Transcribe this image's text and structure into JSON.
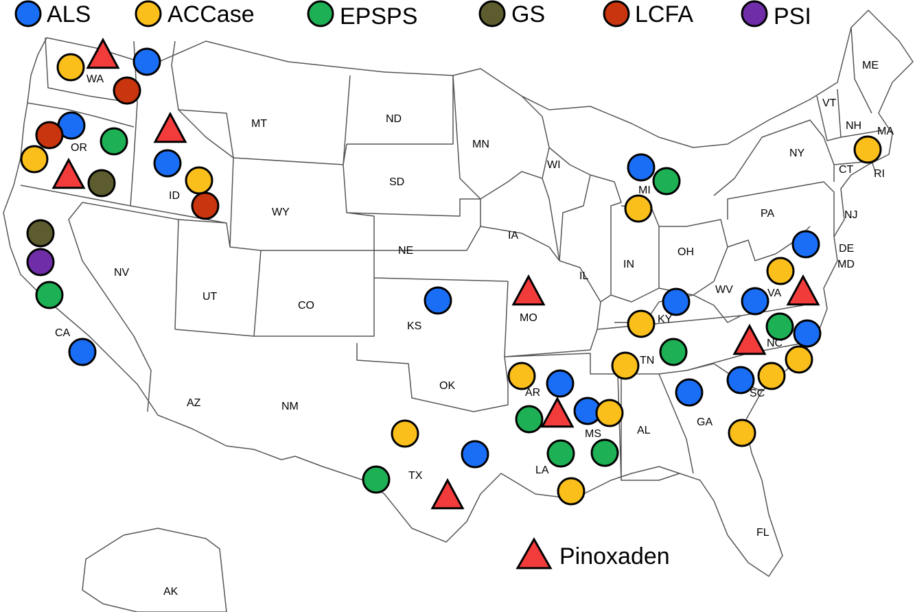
{
  "colors": {
    "ALS": "#1a6ef5",
    "ACCase": "#fbbf1c",
    "EPSPS": "#1db054",
    "GS": "#5c5c2e",
    "LCFA": "#c8350e",
    "PSI": "#6f2da8",
    "Pinoxaden": "#f23c3c"
  },
  "legend": [
    {
      "key": "ALS",
      "label": "ALS"
    },
    {
      "key": "ACCase",
      "label": "ACCase"
    },
    {
      "key": "EPSPS",
      "label": "EPSPS"
    },
    {
      "key": "GS",
      "label": "GS"
    },
    {
      "key": "LCFA",
      "label": "LCFA"
    },
    {
      "key": "PSI",
      "label": "PSI"
    }
  ],
  "pinoxaden_label": "Pinoxaden",
  "state_labels": [
    "WA",
    "OR",
    "CA",
    "ID",
    "NV",
    "MT",
    "WY",
    "UT",
    "AZ",
    "CO",
    "NM",
    "ND",
    "SD",
    "NE",
    "KS",
    "OK",
    "TX",
    "MN",
    "IA",
    "MO",
    "AR",
    "LA",
    "WI",
    "IL",
    "MS",
    "MI",
    "IN",
    "OH",
    "KY",
    "TN",
    "AL",
    "GA",
    "FL",
    "SC",
    "NC",
    "VA",
    "WV",
    "PA",
    "NY",
    "VT",
    "NH",
    "ME",
    "MA",
    "CT",
    "RI",
    "NJ",
    "DE",
    "MD",
    "AK"
  ],
  "resistance_sites": [
    {
      "state": "WA",
      "types": [
        "ACCase",
        "ALS",
        "LCFA",
        "Pinoxaden"
      ]
    },
    {
      "state": "OR",
      "types": [
        "ALS",
        "LCFA",
        "EPSPS",
        "ACCase",
        "GS",
        "Pinoxaden"
      ]
    },
    {
      "state": "ID",
      "types": [
        "ALS",
        "ACCase",
        "LCFA",
        "Pinoxaden"
      ]
    },
    {
      "state": "CA",
      "types": [
        "GS",
        "PSI",
        "EPSPS",
        "ALS"
      ]
    },
    {
      "state": "MI",
      "types": [
        "ALS",
        "EPSPS",
        "ACCase"
      ]
    },
    {
      "state": "MA",
      "types": [
        "ACCase"
      ]
    },
    {
      "state": "KS",
      "types": [
        "ALS"
      ]
    },
    {
      "state": "MO",
      "types": [
        "Pinoxaden"
      ]
    },
    {
      "state": "KY",
      "types": [
        "ALS",
        "ACCase"
      ]
    },
    {
      "state": "TN",
      "types": [
        "EPSPS",
        "ACCase"
      ]
    },
    {
      "state": "VA",
      "types": [
        "ACCase",
        "ALS",
        "Pinoxaden"
      ]
    },
    {
      "state": "MD",
      "types": [
        "ALS"
      ]
    },
    {
      "state": "NC",
      "types": [
        "EPSPS",
        "ALS",
        "Pinoxaden",
        "ACCase"
      ]
    },
    {
      "state": "SC",
      "types": [
        "ALS",
        "ACCase"
      ]
    },
    {
      "state": "GA",
      "types": [
        "ALS",
        "ACCase"
      ]
    },
    {
      "state": "AR",
      "types": [
        "ACCase",
        "ALS",
        "EPSPS",
        "Pinoxaden"
      ]
    },
    {
      "state": "MS",
      "types": [
        "ALS",
        "ACCase",
        "EPSPS"
      ]
    },
    {
      "state": "LA",
      "types": [
        "EPSPS",
        "ACCase"
      ]
    },
    {
      "state": "TX",
      "types": [
        "ACCase",
        "ALS",
        "EPSPS",
        "Pinoxaden"
      ]
    }
  ]
}
